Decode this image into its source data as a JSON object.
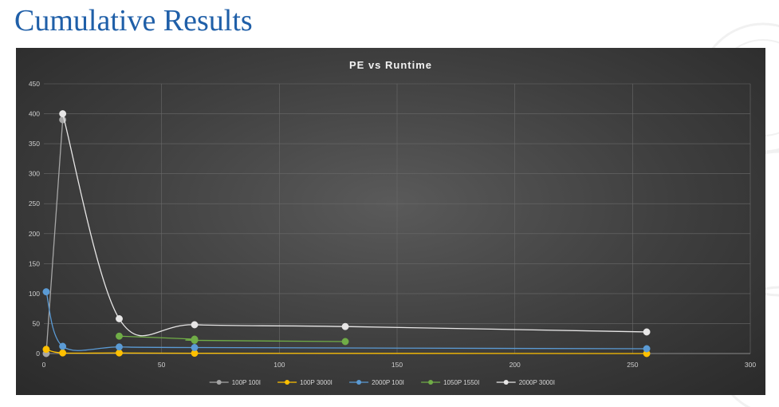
{
  "slide": {
    "title": "Cumulative Results"
  },
  "chart_data": {
    "type": "line",
    "title": "PE vs Runtime",
    "xlabel": "",
    "ylabel": "",
    "xlim": [
      0,
      300
    ],
    "ylim": [
      0,
      450
    ],
    "x_ticks": [
      0,
      50,
      100,
      150,
      200,
      250,
      300
    ],
    "y_ticks": [
      0,
      50,
      100,
      150,
      200,
      250,
      300,
      350,
      400,
      450
    ],
    "grid": true,
    "smooth": true,
    "legend_position": "bottom",
    "series": [
      {
        "name": "100P 100I",
        "color": "#a6a6a6",
        "x": [
          1,
          8
        ],
        "y": [
          0,
          390
        ]
      },
      {
        "name": "100P 3000I",
        "color": "#ffc000",
        "x": [
          1,
          8,
          32,
          64,
          256
        ],
        "y": [
          7,
          1,
          1,
          0.5,
          0
        ]
      },
      {
        "name": "2000P 100I",
        "color": "#5b9bd5",
        "x": [
          1,
          8,
          32,
          64,
          256
        ],
        "y": [
          103,
          12,
          11,
          10,
          8
        ]
      },
      {
        "name": "1050P 1550I",
        "color": "#70ad47",
        "x": [
          32,
          64,
          64,
          128
        ],
        "y": [
          29,
          24,
          22,
          20
        ]
      },
      {
        "name": "2000P 3000I",
        "color": "#e7e6e6",
        "x": [
          8,
          32,
          64,
          128,
          256
        ],
        "y": [
          400,
          58,
          48,
          45,
          36
        ]
      }
    ]
  }
}
